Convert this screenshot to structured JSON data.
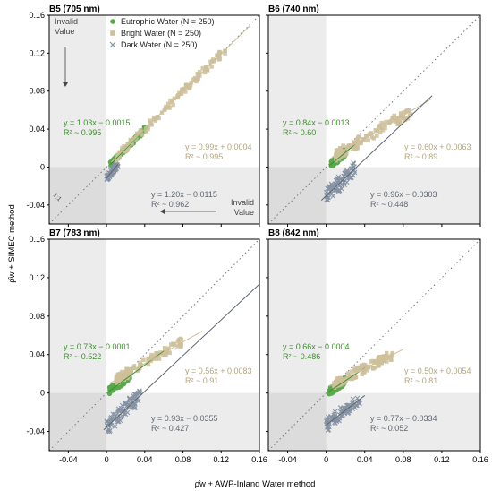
{
  "figure": {
    "xlabel": "ρ̂w + AWP-Inland Water method",
    "ylabel": "ρ̂w + SIMEC method"
  },
  "legend": {
    "items": [
      {
        "label": "Eutrophic Water (N = 250)",
        "marker": "circle",
        "color": "#58a84a"
      },
      {
        "label": "Bright Water (N = 250)",
        "marker": "square",
        "color": "#cdbf9a"
      },
      {
        "label": "Dark Water (N = 250)",
        "marker": "x",
        "color": "#8592a3"
      }
    ]
  },
  "annotations": {
    "invalid_top": [
      "Invalid",
      "Value"
    ],
    "invalid_bottom": [
      "Invalid",
      "Value"
    ],
    "one_to_one": "1:1"
  },
  "colors": {
    "eutrophic": "#58a84a",
    "eutrophic_text": "#3d8f2c",
    "bright": "#cdbf9a",
    "bright_text": "#b4a57b",
    "dark": "#8592a3",
    "dark_text": "#5f6770",
    "invalid_region": "#ececec",
    "invalid_overlap": "#dcdcdc"
  },
  "chart_data": [
    {
      "type": "scatter",
      "title": "B5 (705 nm)",
      "xlim": [
        -0.06,
        0.16
      ],
      "ylim": [
        -0.06,
        0.16
      ],
      "xticks": [
        -0.04,
        0,
        0.04,
        0.08,
        0.12,
        0.16
      ],
      "yticks": [
        -0.04,
        0,
        0.04,
        0.08,
        0.12,
        0.16
      ],
      "x_tick_labels": [
        "",
        "",
        "",
        "",
        "",
        ""
      ],
      "y_tick_labels": [
        "-0.04",
        "0",
        "0.04",
        "0.08",
        "0.12",
        "0.16"
      ],
      "series": [
        {
          "name": "Eutrophic Water",
          "key": "eutrophic",
          "slope": 1.03,
          "intercept": -0.0015,
          "eq": "y = 1.03x − 0.0015",
          "r2": "R² ~ 0.995",
          "x_range": [
            0.004,
            0.04
          ],
          "y_spread": 0.003,
          "fit_x": [
            0.004,
            0.045
          ]
        },
        {
          "name": "Bright Water",
          "key": "bright",
          "slope": 0.99,
          "intercept": 0.0004,
          "eq": "y = 0.99x + 0.0004",
          "r2": "R² ~ 0.995",
          "x_range": [
            0.01,
            0.125
          ],
          "y_spread": 0.004,
          "fit_x": [
            0.005,
            0.15
          ]
        },
        {
          "name": "Dark Water",
          "key": "dark",
          "slope": 1.2,
          "intercept": -0.0115,
          "eq": "y = 1.20x − 0.0115",
          "r2": "R² ~ 0.962",
          "x_range": [
            0.0,
            0.012
          ],
          "y_spread": 0.003,
          "fit_x": [
            0.0,
            0.012
          ]
        }
      ],
      "show_legend": true,
      "show_invalid_notes": true,
      "show_one_to_one_label": true
    },
    {
      "type": "scatter",
      "title": "B6 (740 nm)",
      "xlim": [
        -0.06,
        0.16
      ],
      "ylim": [
        -0.06,
        0.16
      ],
      "xticks": [
        -0.04,
        0,
        0.04,
        0.08,
        0.12,
        0.16
      ],
      "yticks": [
        -0.04,
        0,
        0.04,
        0.08,
        0.12,
        0.16
      ],
      "x_tick_labels": [
        "",
        "",
        "",
        "",
        "",
        ""
      ],
      "y_tick_labels": [
        "",
        "",
        "",
        "",
        "",
        ""
      ],
      "series": [
        {
          "name": "Eutrophic Water",
          "key": "eutrophic",
          "slope": 0.84,
          "intercept": -0.0013,
          "eq": "y = 0.84x − 0.0013",
          "r2": "R² ~ 0.60",
          "x_range": [
            0.005,
            0.02
          ],
          "y_spread": 0.004,
          "fit_x": [
            0.003,
            0.03
          ]
        },
        {
          "name": "Bright Water",
          "key": "bright",
          "slope": 0.6,
          "intercept": 0.0063,
          "eq": "y = 0.60x + 0.0063",
          "r2": "R² ~ 0.89",
          "x_range": [
            0.01,
            0.09
          ],
          "y_spread": 0.006,
          "fit_x": [
            0.003,
            0.11
          ]
        },
        {
          "name": "Dark Water",
          "key": "dark",
          "slope": 0.96,
          "intercept": -0.0303,
          "eq": "y = 0.96x − 0.0303",
          "r2": "R² ~ 0.448",
          "x_range": [
            0.0,
            0.03
          ],
          "y_spread": 0.008,
          "fit_x": [
            -0.005,
            0.11
          ]
        }
      ],
      "show_legend": false,
      "show_invalid_notes": false,
      "show_one_to_one_label": false
    },
    {
      "type": "scatter",
      "title": "B7 (783 nm)",
      "xlim": [
        -0.06,
        0.16
      ],
      "ylim": [
        -0.06,
        0.16
      ],
      "xticks": [
        -0.04,
        0,
        0.04,
        0.08,
        0.12,
        0.16
      ],
      "yticks": [
        -0.04,
        0,
        0.04,
        0.08,
        0.12,
        0.16
      ],
      "x_tick_labels": [
        "-0.04",
        "0",
        "0.04",
        "0.08",
        "0.12",
        "0.16"
      ],
      "y_tick_labels": [
        "-0.04",
        "0",
        "0.04",
        "0.08",
        "0.12",
        "0.16"
      ],
      "series": [
        {
          "name": "Eutrophic Water",
          "key": "eutrophic",
          "slope": 0.73,
          "intercept": -0.0001,
          "eq": "y = 0.73x − 0.0001",
          "r2": "R² ~ 0.522",
          "x_range": [
            0.003,
            0.025
          ],
          "y_spread": 0.004,
          "fit_x": [
            0.003,
            0.06
          ]
        },
        {
          "name": "Bright Water",
          "key": "bright",
          "slope": 0.56,
          "intercept": 0.0083,
          "eq": "y = 0.56x + 0.0083",
          "r2": "R² ~ 0.91",
          "x_range": [
            0.01,
            0.08
          ],
          "y_spread": 0.005,
          "fit_x": [
            0.003,
            0.1
          ]
        },
        {
          "name": "Dark Water",
          "key": "dark",
          "slope": 0.93,
          "intercept": -0.0355,
          "eq": "y = 0.93x − 0.0355",
          "r2": "R² ~ 0.427",
          "x_range": [
            0.0,
            0.035
          ],
          "y_spread": 0.008,
          "fit_x": [
            -0.003,
            0.16
          ]
        }
      ],
      "show_legend": false,
      "show_invalid_notes": false,
      "show_one_to_one_label": false
    },
    {
      "type": "scatter",
      "title": "B8 (842 nm)",
      "xlim": [
        -0.06,
        0.16
      ],
      "ylim": [
        -0.06,
        0.16
      ],
      "xticks": [
        -0.04,
        0,
        0.04,
        0.08,
        0.12,
        0.16
      ],
      "yticks": [
        -0.04,
        0,
        0.04,
        0.08,
        0.12,
        0.16
      ],
      "x_tick_labels": [
        "-0.04",
        "0",
        "0.04",
        "0.08",
        "0.12",
        "0.16"
      ],
      "y_tick_labels": [
        "",
        "",
        "",
        "",
        "",
        ""
      ],
      "series": [
        {
          "name": "Eutrophic Water",
          "key": "eutrophic",
          "slope": 0.66,
          "intercept": -0.0004,
          "eq": "y = 0.66x − 0.0004",
          "r2": "R² ~ 0.486",
          "x_range": [
            0.003,
            0.02
          ],
          "y_spread": 0.004,
          "fit_x": [
            0.003,
            0.04
          ]
        },
        {
          "name": "Bright Water",
          "key": "bright",
          "slope": 0.5,
          "intercept": 0.0054,
          "eq": "y = 0.50x + 0.0054",
          "r2": "R² ~ 0.81",
          "x_range": [
            0.008,
            0.07
          ],
          "y_spread": 0.005,
          "fit_x": [
            0.003,
            0.08
          ]
        },
        {
          "name": "Dark Water",
          "key": "dark",
          "slope": 0.77,
          "intercept": -0.0334,
          "eq": "y = 0.77x − 0.0334",
          "r2": "R² ~ 0.052",
          "x_range": [
            0.0,
            0.035
          ],
          "y_spread": 0.007,
          "fit_x": [
            0.0,
            0.04
          ]
        }
      ],
      "show_legend": false,
      "show_invalid_notes": false,
      "show_one_to_one_label": false
    }
  ]
}
